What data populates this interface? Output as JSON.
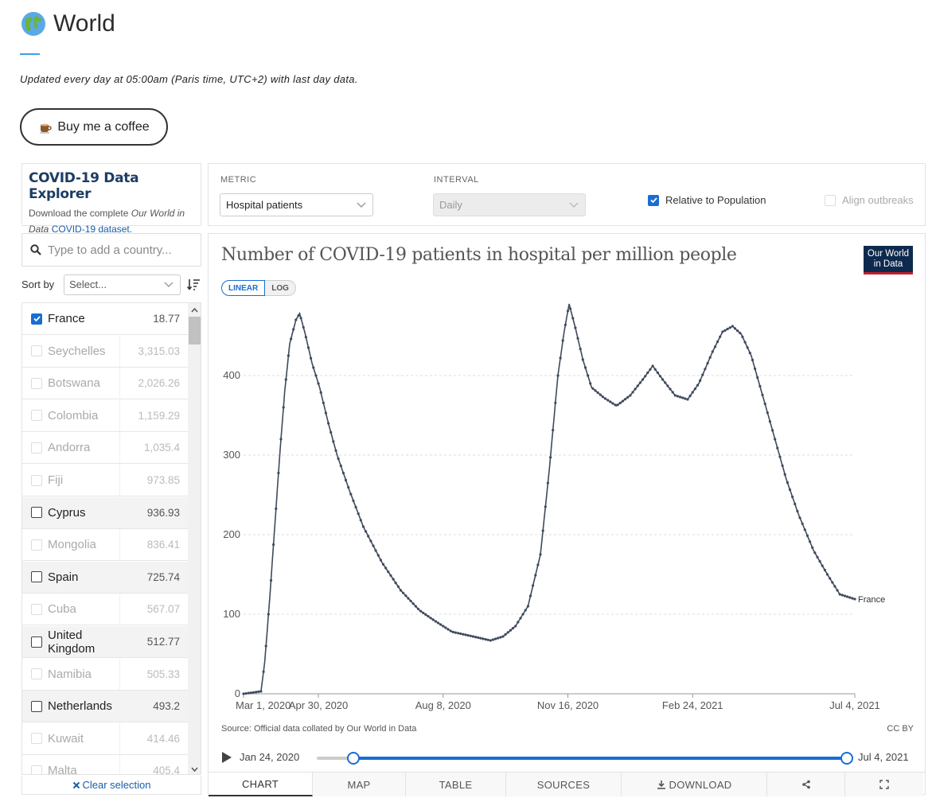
{
  "header": {
    "title": "World",
    "updated": "Updated every day at 05:00am (Paris time, UTC+2) with last day data.",
    "coffee_label": "Buy me a coffee",
    "coffee_icon": "coffee-cup-icon"
  },
  "explorer": {
    "title": "COVID-19 Data Explorer",
    "sub_prefix": "Download the complete ",
    "sub_italic": "Our World in Data",
    "sub_link": "COVID-19 dataset."
  },
  "controls": {
    "metric_label": "METRIC",
    "metric_value": "Hospital patients",
    "interval_label": "INTERVAL",
    "interval_value": "Daily",
    "relative_label": "Relative to Population",
    "relative_checked": true,
    "align_label": "Align outbreaks",
    "align_checked": false
  },
  "search": {
    "placeholder": "Type to add a country..."
  },
  "sort": {
    "label": "Sort by",
    "value": "Select..."
  },
  "countries": [
    {
      "name": "France",
      "value": "18.77",
      "checked": true,
      "state": "top"
    },
    {
      "name": "Seychelles",
      "value": "3,315.03",
      "checked": false,
      "state": "faded"
    },
    {
      "name": "Botswana",
      "value": "2,026.26",
      "checked": false,
      "state": "faded"
    },
    {
      "name": "Colombia",
      "value": "1,159.29",
      "checked": false,
      "state": "faded"
    },
    {
      "name": "Andorra",
      "value": "1,035.4",
      "checked": false,
      "state": "faded"
    },
    {
      "name": "Fiji",
      "value": "973.85",
      "checked": false,
      "state": "faded"
    },
    {
      "name": "Cyprus",
      "value": "936.93",
      "checked": false,
      "state": "dark"
    },
    {
      "name": "Mongolia",
      "value": "836.41",
      "checked": false,
      "state": "faded"
    },
    {
      "name": "Spain",
      "value": "725.74",
      "checked": false,
      "state": "dark"
    },
    {
      "name": "Cuba",
      "value": "567.07",
      "checked": false,
      "state": "faded"
    },
    {
      "name": "United Kingdom",
      "value": "512.77",
      "checked": false,
      "state": "dark"
    },
    {
      "name": "Namibia",
      "value": "505.33",
      "checked": false,
      "state": "faded"
    },
    {
      "name": "Netherlands",
      "value": "493.2",
      "checked": false,
      "state": "dark"
    },
    {
      "name": "Kuwait",
      "value": "414.46",
      "checked": false,
      "state": "faded"
    },
    {
      "name": "Malta",
      "value": "405.4",
      "checked": false,
      "state": "faded"
    }
  ],
  "clear_selection": "Clear selection",
  "chart": {
    "title": "Number of COVID-19 patients in hospital per million people",
    "logo": "Our World in Data",
    "scale_linear": "LINEAR",
    "scale_log": "LOG",
    "source": "Source: Official data collated by Our World in Data",
    "license": "CC BY"
  },
  "chart_data": {
    "type": "line",
    "title": "Number of COVID-19 patients in hospital per million people",
    "xlabel": "",
    "ylabel": "",
    "x_ticks": [
      "Mar 1, 2020",
      "Apr 30, 2020",
      "Aug 8, 2020",
      "Nov 16, 2020",
      "Feb 24, 2021",
      "Jul 4, 2021"
    ],
    "y_ticks": [
      0,
      100,
      200,
      300,
      400
    ],
    "ylim": [
      0,
      490
    ],
    "xlim": [
      "2020-03-01",
      "2021-07-04"
    ],
    "grid": true,
    "series": [
      {
        "name": "France",
        "color": "#3f4a5c",
        "points": [
          [
            "2020-03-01",
            0
          ],
          [
            "2020-03-15",
            3
          ],
          [
            "2020-03-18",
            40
          ],
          [
            "2020-03-22",
            120
          ],
          [
            "2020-03-26",
            210
          ],
          [
            "2020-03-30",
            300
          ],
          [
            "2020-04-03",
            380
          ],
          [
            "2020-04-07",
            440
          ],
          [
            "2020-04-12",
            470
          ],
          [
            "2020-04-15",
            478
          ],
          [
            "2020-04-19",
            455
          ],
          [
            "2020-04-25",
            415
          ],
          [
            "2020-05-01",
            385
          ],
          [
            "2020-05-08",
            340
          ],
          [
            "2020-05-15",
            300
          ],
          [
            "2020-05-25",
            255
          ],
          [
            "2020-06-05",
            210
          ],
          [
            "2020-06-20",
            165
          ],
          [
            "2020-07-05",
            130
          ],
          [
            "2020-07-20",
            105
          ],
          [
            "2020-08-01",
            92
          ],
          [
            "2020-08-15",
            78
          ],
          [
            "2020-09-01",
            72
          ],
          [
            "2020-09-15",
            67
          ],
          [
            "2020-09-25",
            72
          ],
          [
            "2020-10-05",
            85
          ],
          [
            "2020-10-15",
            110
          ],
          [
            "2020-10-25",
            175
          ],
          [
            "2020-11-01",
            280
          ],
          [
            "2020-11-08",
            400
          ],
          [
            "2020-11-13",
            455
          ],
          [
            "2020-11-17",
            490
          ],
          [
            "2020-11-22",
            460
          ],
          [
            "2020-11-28",
            420
          ],
          [
            "2020-12-05",
            385
          ],
          [
            "2020-12-15",
            372
          ],
          [
            "2020-12-25",
            362
          ],
          [
            "2021-01-05",
            375
          ],
          [
            "2021-01-15",
            395
          ],
          [
            "2021-01-23",
            412
          ],
          [
            "2021-01-31",
            395
          ],
          [
            "2021-02-10",
            375
          ],
          [
            "2021-02-20",
            370
          ],
          [
            "2021-03-01",
            390
          ],
          [
            "2021-03-12",
            430
          ],
          [
            "2021-03-20",
            455
          ],
          [
            "2021-03-28",
            462
          ],
          [
            "2021-04-04",
            452
          ],
          [
            "2021-04-12",
            425
          ],
          [
            "2021-04-22",
            370
          ],
          [
            "2021-05-01",
            320
          ],
          [
            "2021-05-10",
            270
          ],
          [
            "2021-05-20",
            225
          ],
          [
            "2021-06-01",
            180
          ],
          [
            "2021-06-12",
            150
          ],
          [
            "2021-06-22",
            125
          ],
          [
            "2021-07-04",
            119
          ]
        ]
      }
    ],
    "end_label": "France"
  },
  "timeline": {
    "start": "Jan 24, 2020",
    "end": "Jul 4, 2021",
    "start_frac": 0.069,
    "end_frac": 1.0
  },
  "tabs": [
    "CHART",
    "MAP",
    "TABLE",
    "SOURCES",
    "DOWNLOAD"
  ]
}
